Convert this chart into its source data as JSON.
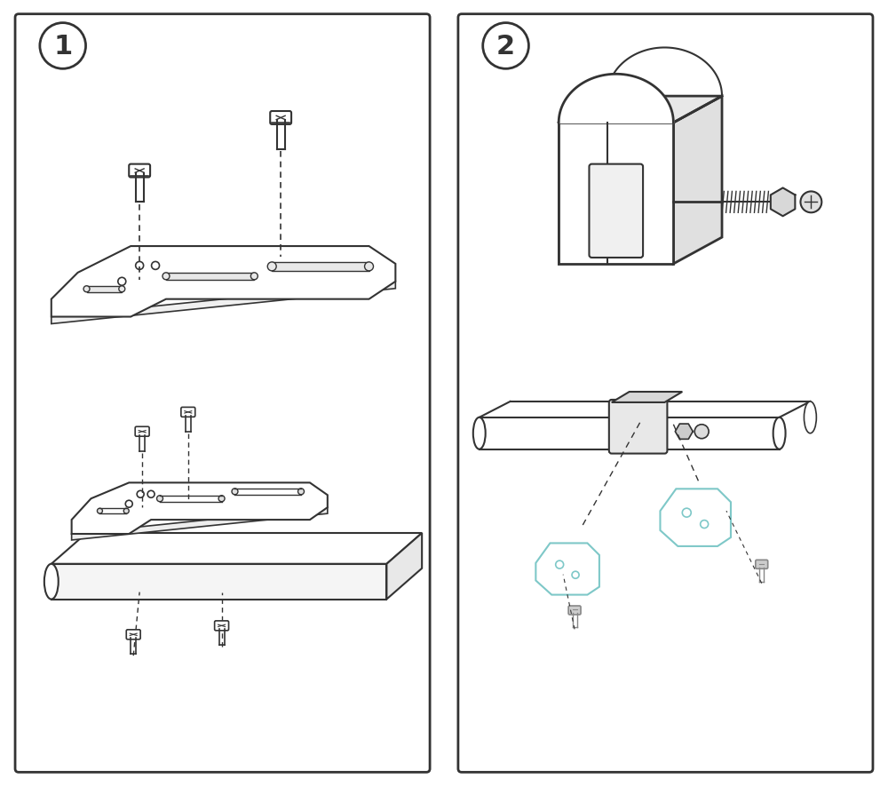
{
  "bg_color": "#ffffff",
  "lc": "#333333",
  "lc_light": "#888888",
  "cyan": "#7ec8c8",
  "fill_white": "#ffffff",
  "fill_light": "#f0f0f0",
  "fill_mid": "#dddddd"
}
